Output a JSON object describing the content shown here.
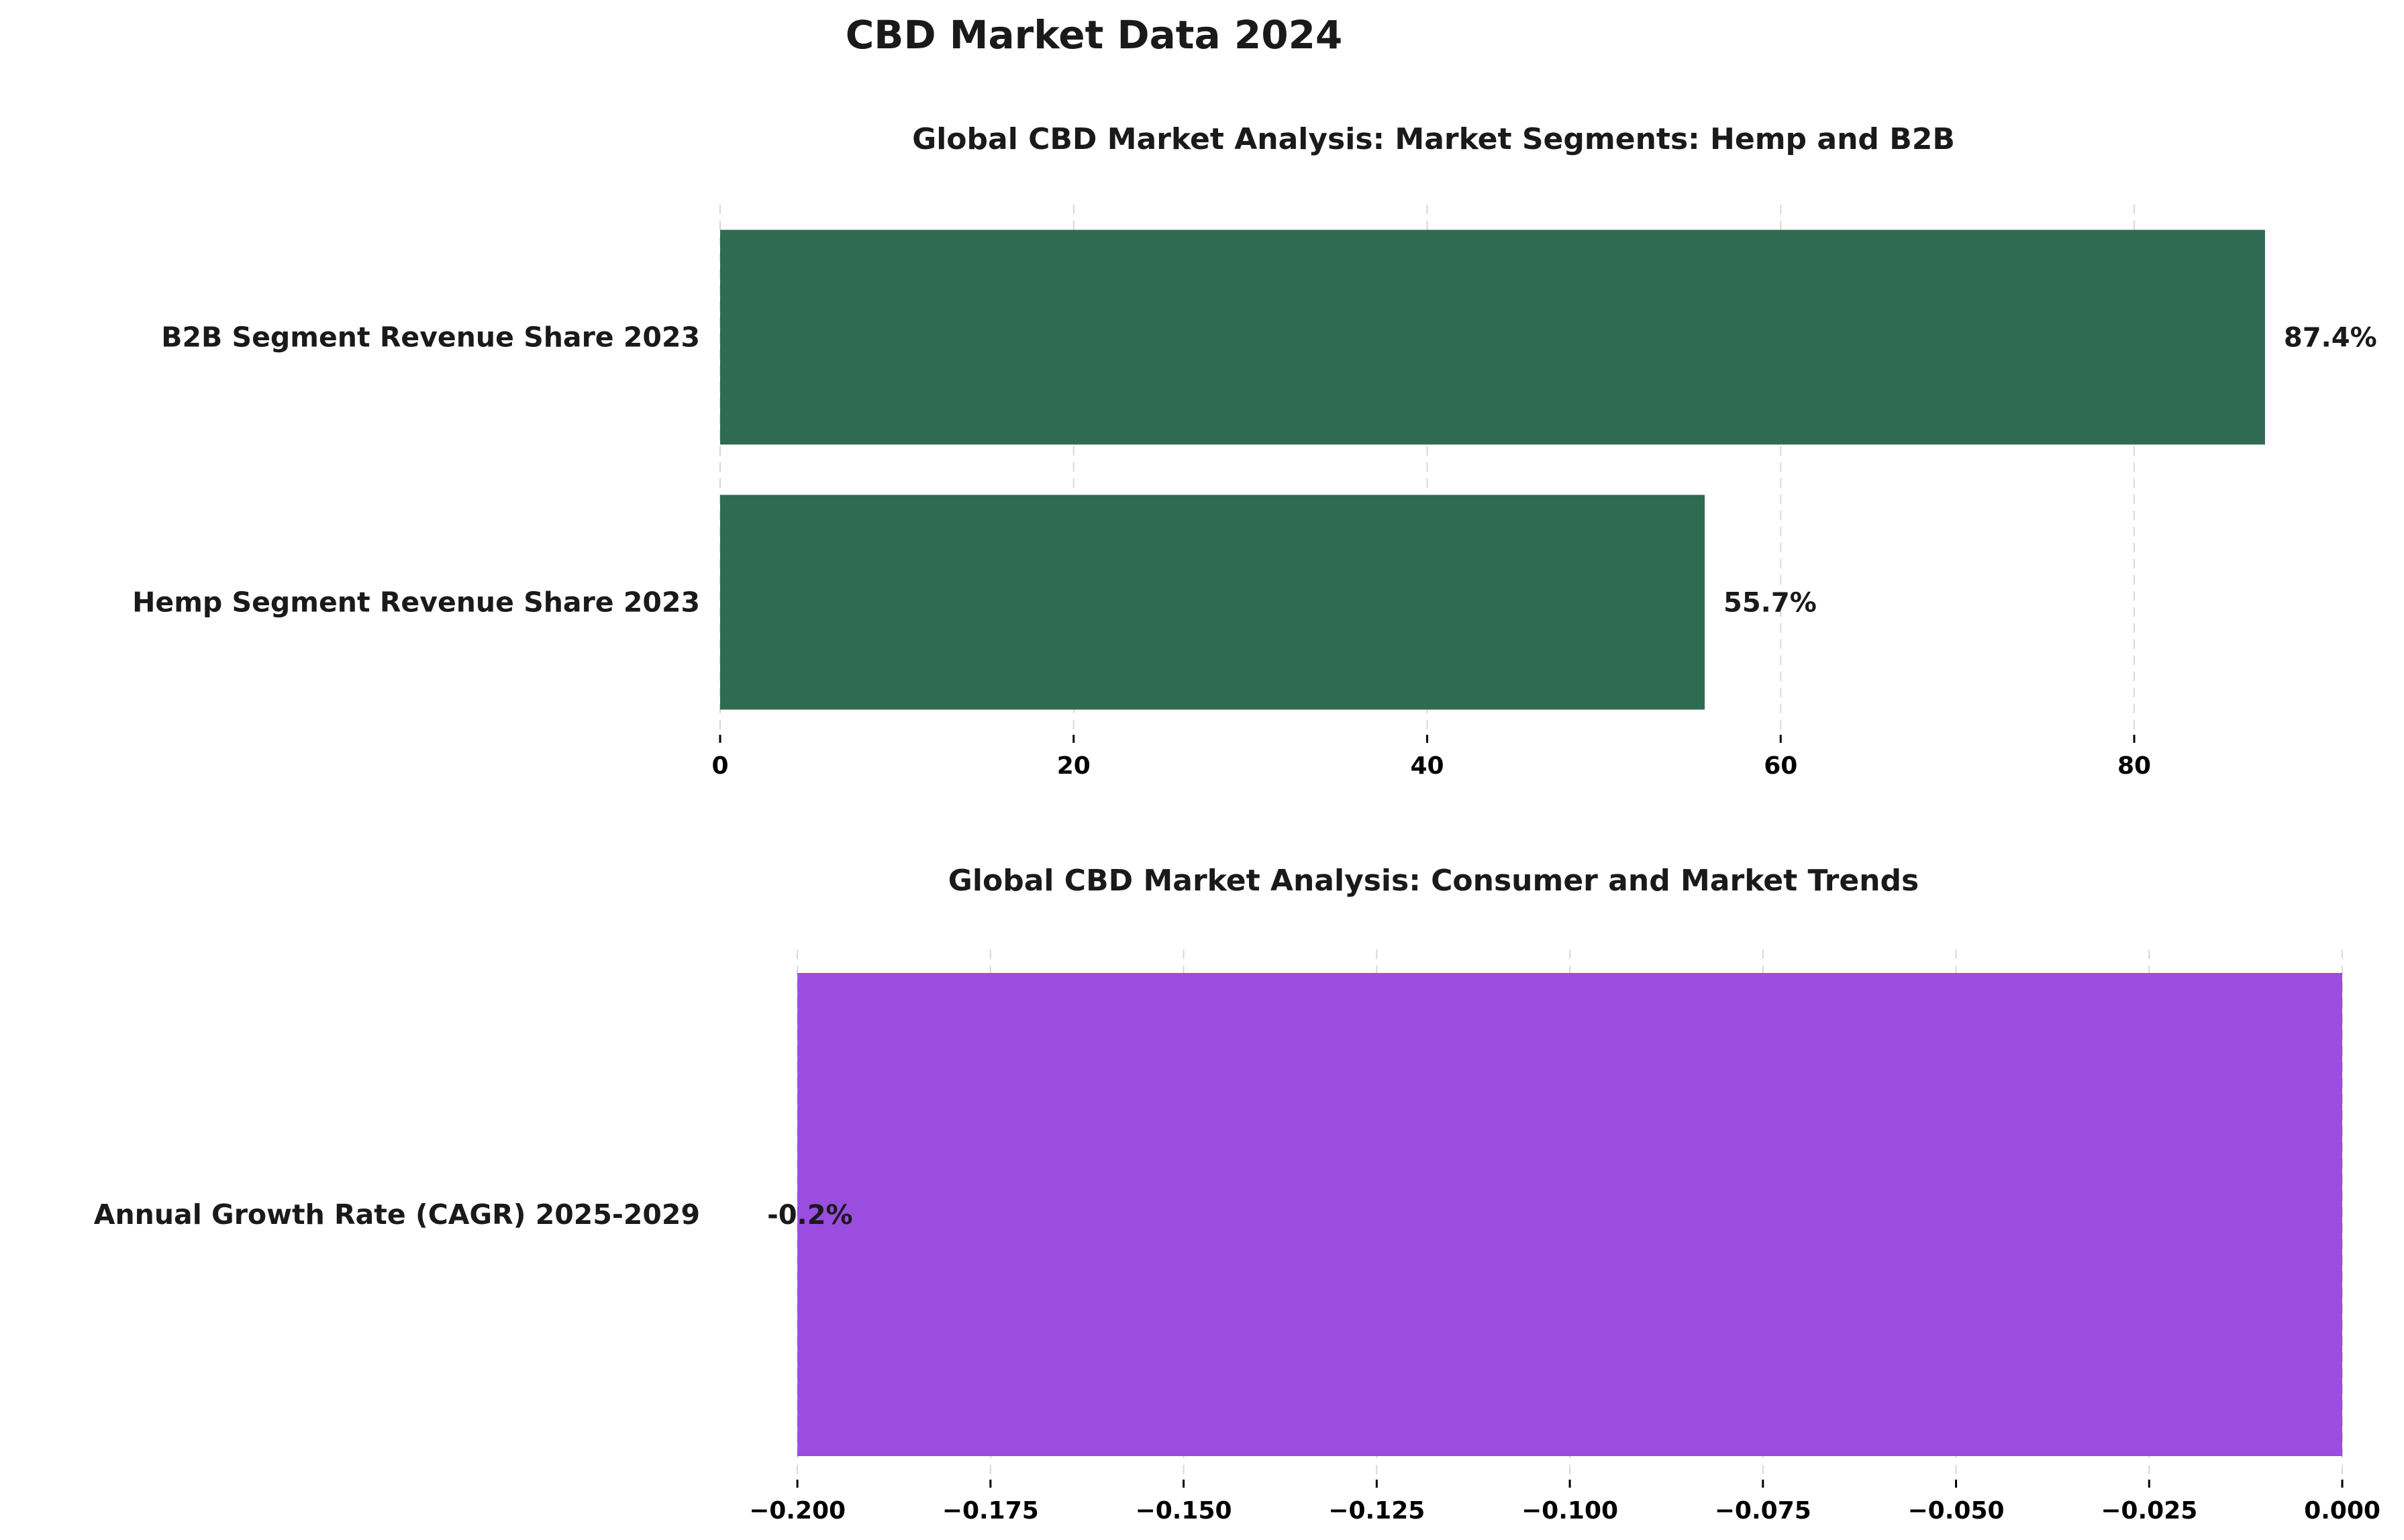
{
  "figure": {
    "title": "CBD Market Data 2024"
  },
  "chart_data": [
    {
      "type": "bar",
      "orientation": "horizontal",
      "title": "Global CBD Market Analysis: Market Segments: Hemp and B2B",
      "categories": [
        "Hemp Segment Revenue Share 2023",
        "B2B Segment Revenue Share 2023"
      ],
      "values": [
        55.7,
        87.4
      ],
      "value_labels": [
        "55.7%",
        "87.4%"
      ],
      "xlim": [
        0,
        91.77
      ],
      "xticks": [
        0,
        20,
        40,
        60,
        80
      ],
      "xtick_labels": [
        "0",
        "20",
        "40",
        "60",
        "80"
      ],
      "grid": "x-dashed",
      "bar_color": "#2f6b52",
      "background_color": "#edfdf3"
    },
    {
      "type": "bar",
      "orientation": "horizontal",
      "title": "Global CBD Market Analysis: Consumer and Market Trends",
      "categories": [
        "Annual Growth Rate (CAGR) 2025-2029"
      ],
      "values": [
        -0.2
      ],
      "value_labels": [
        "-0.2%"
      ],
      "xlim": [
        -0.21,
        0.0
      ],
      "xticks": [
        -0.2,
        -0.175,
        -0.15,
        -0.125,
        -0.1,
        -0.075,
        -0.05,
        -0.025,
        0.0
      ],
      "xtick_labels": [
        "−0.200",
        "−0.175",
        "−0.150",
        "−0.125",
        "−0.100",
        "−0.075",
        "−0.050",
        "−0.025",
        "0.000"
      ],
      "grid": "x-dashed",
      "bar_color": "#9a4ddf",
      "background_color": "#fbf0fc"
    }
  ]
}
